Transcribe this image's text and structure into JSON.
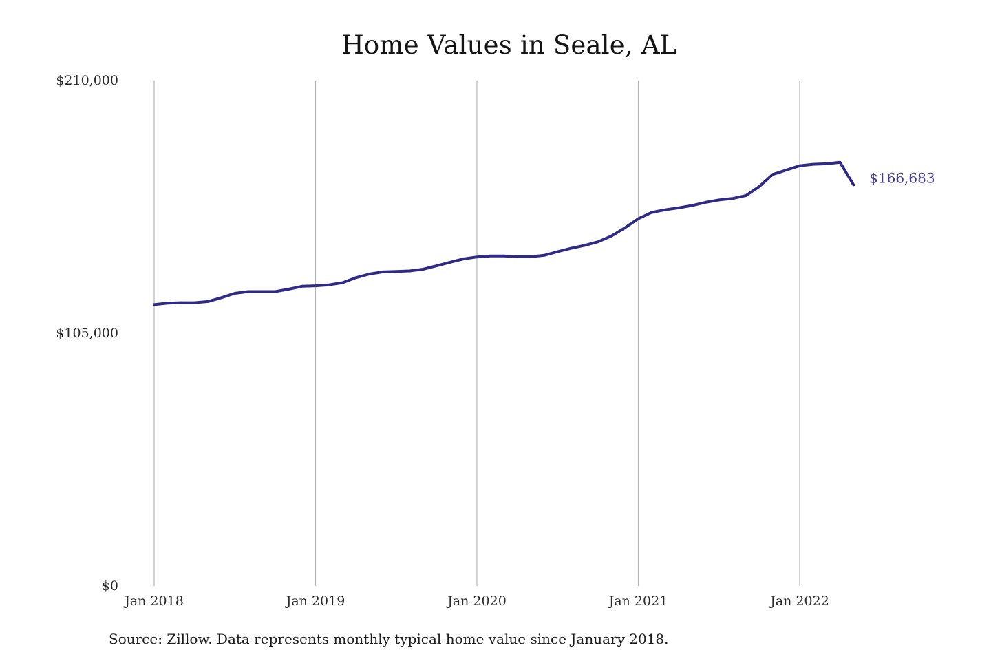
{
  "title": "Home Values in Seale, AL",
  "source": "Source: Zillow. Data represents monthly typical home value since January 2018.",
  "colors": {
    "line": "#2f2a86",
    "grid": "#b5b5b5",
    "end_label": "#3d3a8c"
  },
  "chart_data": {
    "type": "line",
    "title": "Home Values in Seale, AL",
    "xlabel": "",
    "ylabel": "",
    "ylim": [
      0,
      210000
    ],
    "y_ticks": [
      0,
      105000,
      210000
    ],
    "y_tick_labels": [
      "$0",
      "$105,000",
      "$210,000"
    ],
    "x_ticks": [
      "2018-01",
      "2019-01",
      "2020-01",
      "2021-01",
      "2022-01"
    ],
    "x_tick_labels": [
      "Jan 2018",
      "Jan 2019",
      "Jan 2020",
      "Jan 2021",
      "Jan 2022"
    ],
    "grid": "vertical",
    "end_label": "$166,683",
    "series": [
      {
        "x": [
          "2018-01",
          "2018-02",
          "2018-03",
          "2018-04",
          "2018-05",
          "2018-06",
          "2018-07",
          "2018-08",
          "2018-09",
          "2018-10",
          "2018-11",
          "2018-12",
          "2019-01",
          "2019-02",
          "2019-03",
          "2019-04",
          "2019-05",
          "2019-06",
          "2019-07",
          "2019-08",
          "2019-09",
          "2019-10",
          "2019-11",
          "2019-12",
          "2020-01",
          "2020-02",
          "2020-03",
          "2020-04",
          "2020-05",
          "2020-06",
          "2020-07",
          "2020-08",
          "2020-09",
          "2020-10",
          "2020-11",
          "2020-12",
          "2021-01",
          "2021-02",
          "2021-03",
          "2021-04",
          "2021-05",
          "2021-06",
          "2021-07",
          "2021-08",
          "2021-09",
          "2021-10",
          "2021-11",
          "2021-12",
          "2022-01",
          "2022-02",
          "2022-03",
          "2022-04",
          "2022-05"
        ],
        "values": [
          116900,
          117500,
          117700,
          117700,
          118200,
          119800,
          121600,
          122300,
          122300,
          122300,
          123300,
          124500,
          124700,
          125100,
          126000,
          128100,
          129600,
          130500,
          130700,
          130900,
          131600,
          133000,
          134500,
          135900,
          136700,
          137100,
          137100,
          136800,
          136800,
          137400,
          138900,
          140300,
          141500,
          143000,
          145400,
          148800,
          152600,
          155200,
          156300,
          157100,
          158100,
          159400,
          160400,
          161000,
          162200,
          166000,
          171000,
          172800,
          174600,
          175200,
          175400,
          176000,
          166683
        ]
      }
    ]
  }
}
